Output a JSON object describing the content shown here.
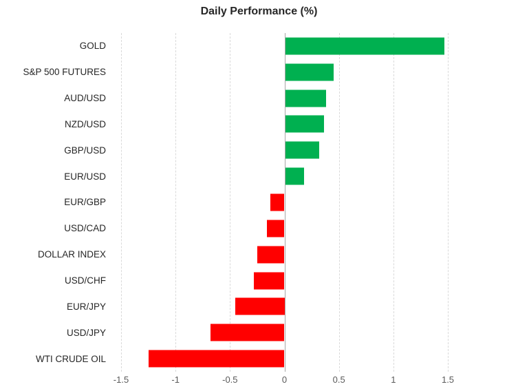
{
  "chart_data": {
    "type": "bar",
    "orientation": "horizontal",
    "title": "Daily Performance (%)",
    "categories": [
      "GOLD",
      "S&P 500 FUTURES",
      "AUD/USD",
      "NZD/USD",
      "GBP/USD",
      "EUR/USD",
      "EUR/GBP",
      "USD/CAD",
      "DOLLAR INDEX",
      "USD/CHF",
      "EUR/JPY",
      "USD/JPY",
      "WTI CRUDE OIL"
    ],
    "values": [
      1.47,
      0.45,
      0.38,
      0.36,
      0.32,
      0.18,
      -0.13,
      -0.16,
      -0.25,
      -0.28,
      -0.45,
      -0.68,
      -1.25
    ],
    "xlim": [
      -1.5,
      1.5
    ],
    "xticks": [
      -1.5,
      -1,
      -0.5,
      0,
      0.5,
      1,
      1.5
    ],
    "xtick_labels": [
      "-1.5",
      "-1",
      "-0.5",
      "0",
      "0.5",
      "1",
      "1.5"
    ],
    "colors": {
      "positive": "#00b050",
      "negative": "#ff0000"
    },
    "grid": "vertical-dashed",
    "legend": "none"
  }
}
